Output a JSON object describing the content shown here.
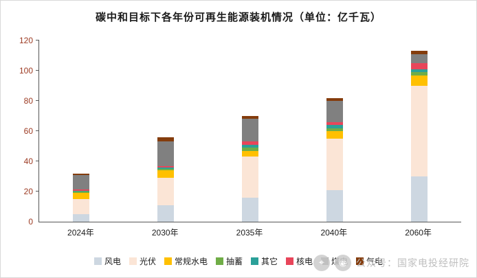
{
  "chart_data": {
    "type": "bar",
    "stacked": true,
    "title": "碳中和目标下各年份可再生能源装机情况（单位：亿千瓦）",
    "categories": [
      "2024年",
      "2030年",
      "2035年",
      "2040年",
      "2060年"
    ],
    "series": [
      {
        "name": "风电",
        "color": "#cdd7e1",
        "values": [
          5,
          11,
          16,
          21,
          30
        ]
      },
      {
        "name": "光伏",
        "color": "#fbe5d6",
        "values": [
          10,
          18,
          27,
          34,
          60
        ]
      },
      {
        "name": "常规水电",
        "color": "#ffc000",
        "values": [
          4,
          5,
          4,
          5,
          7
        ]
      },
      {
        "name": "抽蓄",
        "color": "#70ad47",
        "values": [
          1,
          1,
          2,
          2,
          2
        ]
      },
      {
        "name": "其它",
        "color": "#2ba099",
        "values": [
          0.5,
          1,
          2,
          2,
          2
        ]
      },
      {
        "name": "核电",
        "color": "#e8455a",
        "values": [
          1,
          1,
          2,
          2,
          4
        ]
      },
      {
        "name": "煤电",
        "color": "#808080",
        "values": [
          9.5,
          16,
          15,
          14,
          6
        ]
      },
      {
        "name": "气电",
        "color": "#843c0c",
        "values": [
          1,
          3,
          2,
          2,
          2
        ]
      }
    ],
    "ylim": [
      0,
      120
    ],
    "yticks": [
      0,
      20,
      40,
      60,
      80,
      100,
      120
    ],
    "xlabel": "",
    "ylabel": "",
    "grid": false,
    "legend_position": "bottom"
  },
  "watermark": {
    "text": "公众号：国家电投经研院"
  }
}
